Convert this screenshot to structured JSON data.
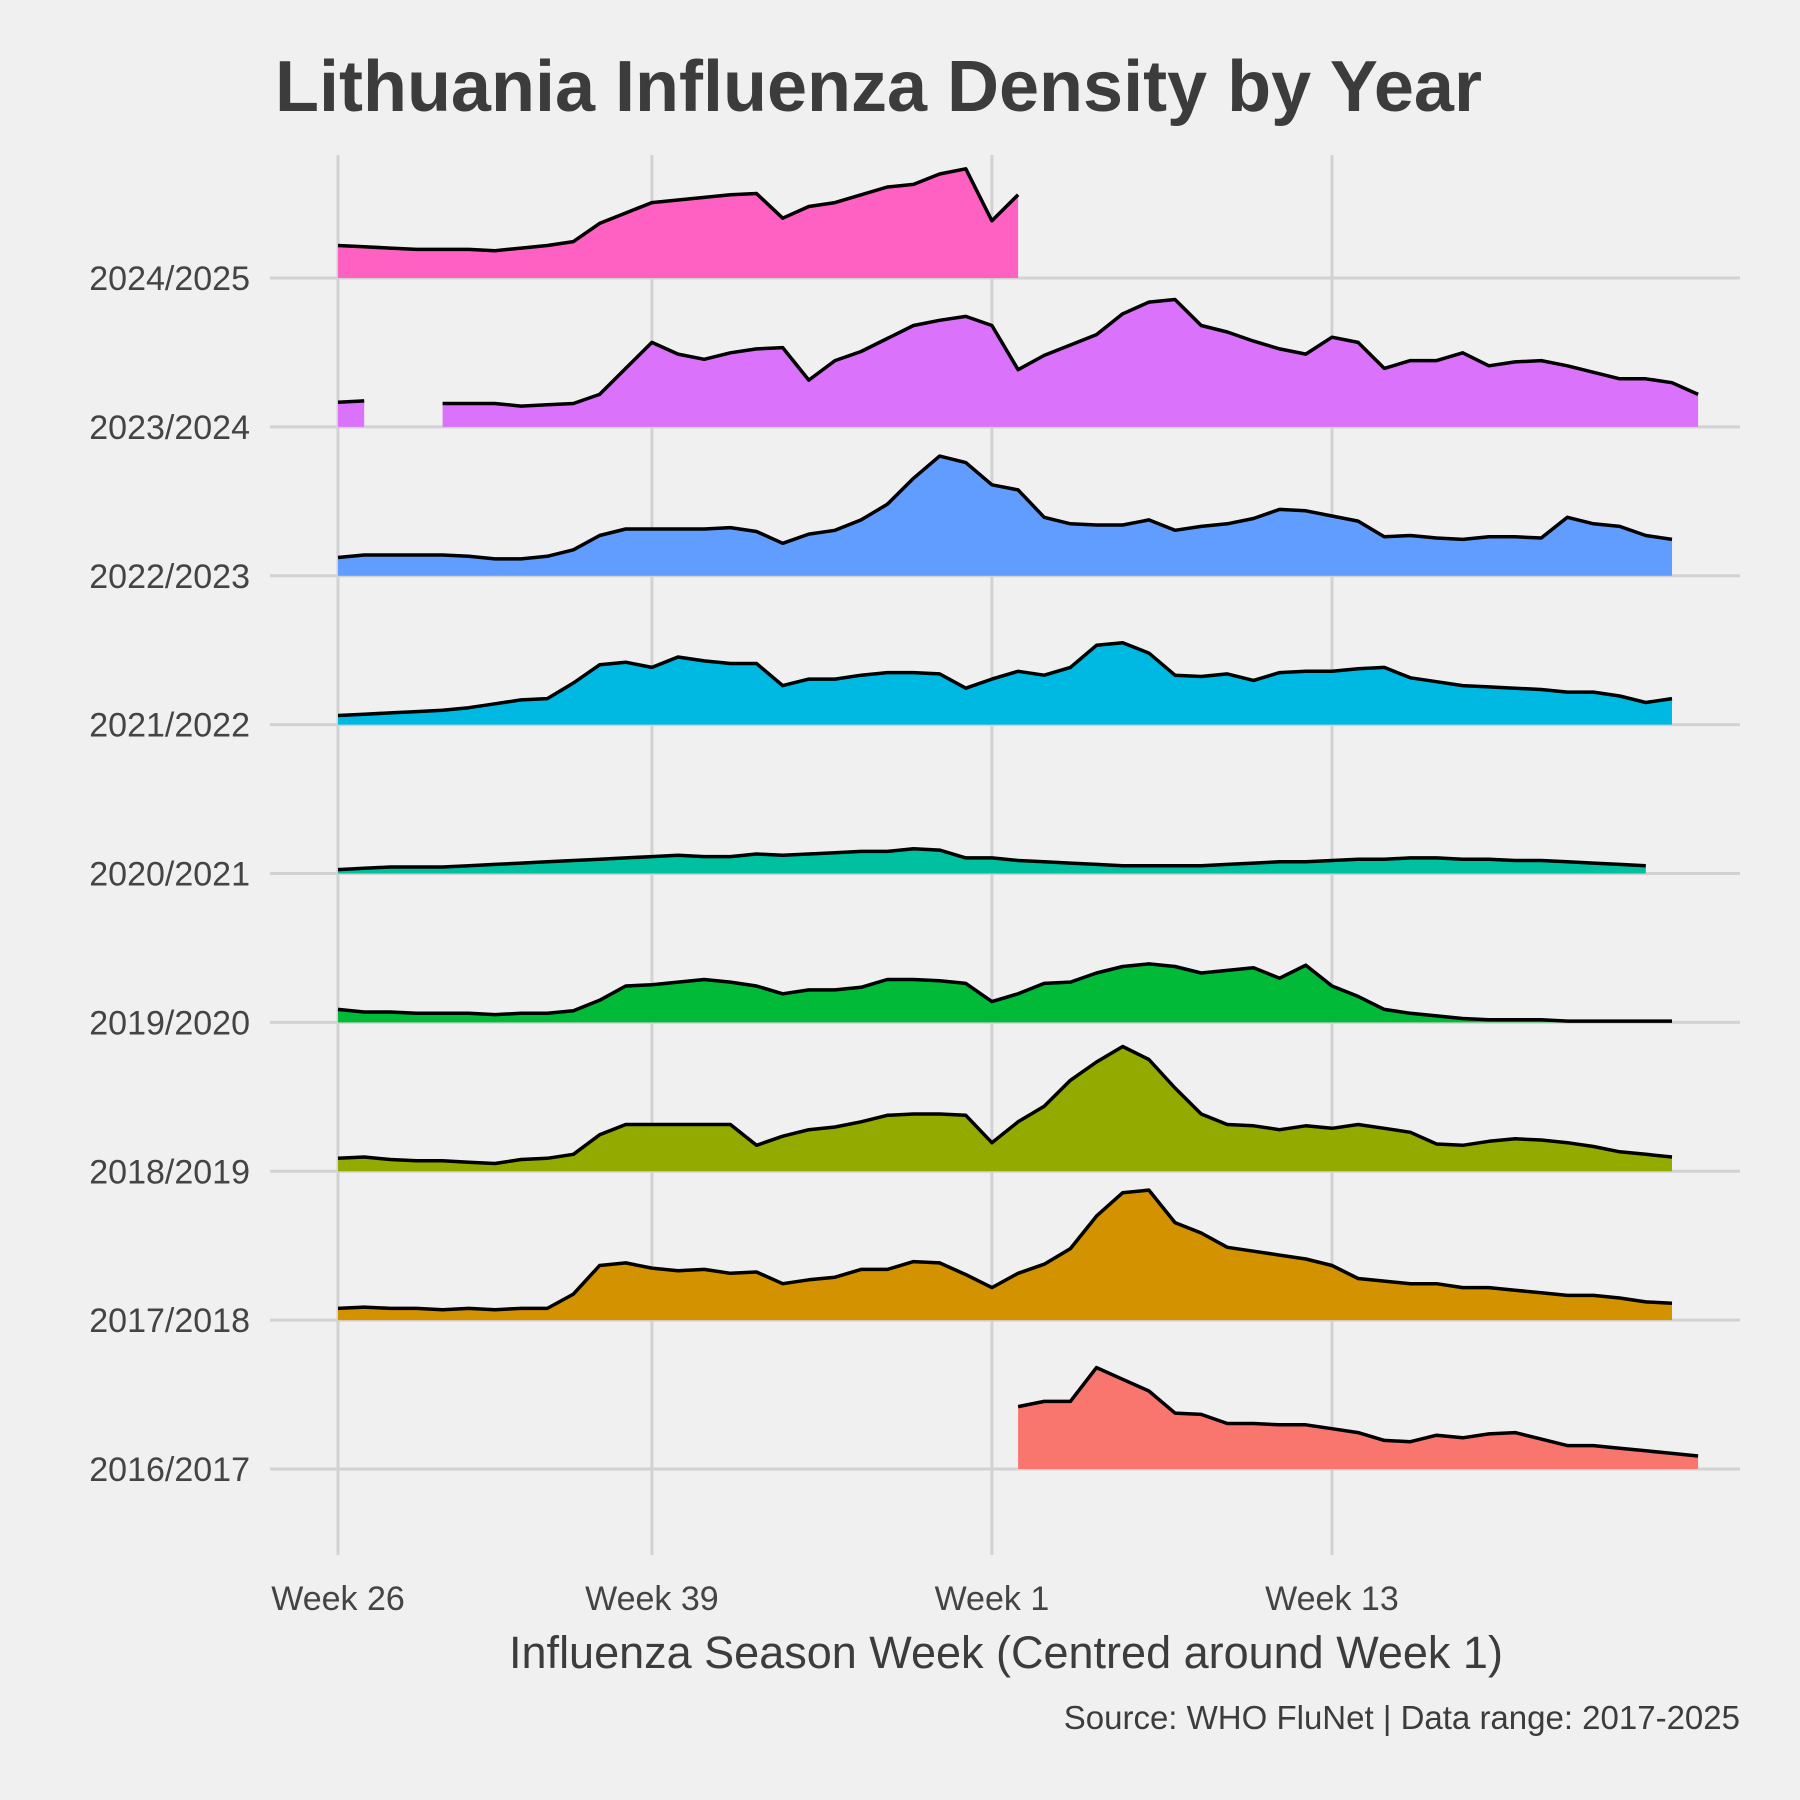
{
  "chart_data": {
    "type": "area",
    "subtype": "ridgeline",
    "title": "Lithuania Influenza Density by Year",
    "xlabel": "Influenza Season Week (Centred around Week 1)",
    "ylabel": "",
    "caption": "Source: WHO FluNet | Data range: 2017-2025",
    "x_ticks": [
      {
        "label": "Week 26",
        "index": 0
      },
      {
        "label": "Week 39",
        "index": 12
      },
      {
        "label": "Week 1",
        "index": 25
      },
      {
        "label": "Week 13",
        "index": 38
      }
    ],
    "xlim": [
      -2.6,
      53.6
    ],
    "ylim": [
      0,
      1
    ],
    "grid": true,
    "legend": "none",
    "series": [
      {
        "name": "2016/2017",
        "color": "#f8766d",
        "values": [
          null,
          null,
          null,
          null,
          null,
          null,
          null,
          null,
          null,
          null,
          null,
          null,
          null,
          null,
          null,
          null,
          null,
          null,
          null,
          null,
          null,
          null,
          null,
          null,
          null,
          null,
          0.48,
          0.52,
          0.52,
          0.78,
          0.69,
          0.6,
          0.43,
          0.42,
          0.35,
          0.35,
          0.34,
          0.34,
          0.31,
          0.28,
          0.22,
          0.21,
          0.26,
          0.24,
          0.27,
          0.28,
          0.23,
          0.18,
          0.18,
          0.16,
          0.14,
          0.12,
          0.1
        ]
      },
      {
        "name": "2017/2018",
        "color": "#d39200",
        "values": [
          0.09,
          0.1,
          0.09,
          0.09,
          0.08,
          0.09,
          0.08,
          0.09,
          0.09,
          0.2,
          0.42,
          0.44,
          0.4,
          0.38,
          0.39,
          0.36,
          0.37,
          0.28,
          0.31,
          0.33,
          0.39,
          0.39,
          0.45,
          0.44,
          0.35,
          0.25,
          0.36,
          0.43,
          0.55,
          0.8,
          0.98,
          1.0,
          0.75,
          0.67,
          0.56,
          0.53,
          0.5,
          0.47,
          0.42,
          0.32,
          0.3,
          0.28,
          0.28,
          0.25,
          0.25,
          0.23,
          0.21,
          0.19,
          0.19,
          0.17,
          0.14,
          0.13
        ]
      },
      {
        "name": "2018/2019",
        "color": "#93aa00",
        "values": [
          0.1,
          0.11,
          0.09,
          0.08,
          0.08,
          0.07,
          0.06,
          0.09,
          0.1,
          0.13,
          0.28,
          0.36,
          0.36,
          0.36,
          0.36,
          0.36,
          0.2,
          0.27,
          0.32,
          0.34,
          0.38,
          0.43,
          0.44,
          0.44,
          0.43,
          0.22,
          0.38,
          0.5,
          0.7,
          0.84,
          0.96,
          0.86,
          0.64,
          0.44,
          0.36,
          0.35,
          0.32,
          0.35,
          0.33,
          0.36,
          0.33,
          0.3,
          0.21,
          0.2,
          0.23,
          0.25,
          0.24,
          0.22,
          0.19,
          0.15,
          0.13,
          0.11
        ]
      },
      {
        "name": "2019/2020",
        "color": "#00ba38",
        "values": [
          0.1,
          0.08,
          0.08,
          0.07,
          0.07,
          0.07,
          0.06,
          0.07,
          0.07,
          0.09,
          0.17,
          0.28,
          0.29,
          0.31,
          0.33,
          0.31,
          0.28,
          0.22,
          0.25,
          0.25,
          0.27,
          0.33,
          0.33,
          0.32,
          0.3,
          0.16,
          0.22,
          0.3,
          0.31,
          0.38,
          0.43,
          0.45,
          0.43,
          0.38,
          0.4,
          0.42,
          0.34,
          0.44,
          0.28,
          0.2,
          0.1,
          0.07,
          0.05,
          0.03,
          0.02,
          0.02,
          0.02,
          0.01,
          0.01,
          0.01,
          0.01,
          0.01
        ]
      },
      {
        "name": "2020/2021",
        "color": "#00c19f",
        "values": [
          0.03,
          0.04,
          0.05,
          0.05,
          0.05,
          0.06,
          0.07,
          0.08,
          0.09,
          0.1,
          0.11,
          0.12,
          0.13,
          0.14,
          0.13,
          0.13,
          0.15,
          0.14,
          0.15,
          0.16,
          0.17,
          0.17,
          0.19,
          0.18,
          0.12,
          0.12,
          0.1,
          0.09,
          0.08,
          0.07,
          0.06,
          0.06,
          0.06,
          0.06,
          0.07,
          0.08,
          0.09,
          0.09,
          0.1,
          0.11,
          0.11,
          0.12,
          0.12,
          0.11,
          0.11,
          0.1,
          0.1,
          0.09,
          0.08,
          0.07,
          0.06
        ]
      },
      {
        "name": "2021/2022",
        "color": "#00b9e3",
        "values": [
          0.07,
          0.08,
          0.09,
          0.1,
          0.11,
          0.13,
          0.16,
          0.19,
          0.2,
          0.32,
          0.46,
          0.48,
          0.44,
          0.52,
          0.49,
          0.47,
          0.47,
          0.3,
          0.35,
          0.35,
          0.38,
          0.4,
          0.4,
          0.39,
          0.28,
          0.35,
          0.41,
          0.38,
          0.44,
          0.61,
          0.63,
          0.55,
          0.38,
          0.37,
          0.39,
          0.34,
          0.4,
          0.41,
          0.41,
          0.43,
          0.44,
          0.36,
          0.33,
          0.3,
          0.29,
          0.28,
          0.27,
          0.25,
          0.25,
          0.22,
          0.17,
          0.2
        ]
      },
      {
        "name": "2022/2023",
        "color": "#619cff",
        "values": [
          0.14,
          0.16,
          0.16,
          0.16,
          0.16,
          0.15,
          0.13,
          0.13,
          0.15,
          0.2,
          0.31,
          0.36,
          0.36,
          0.36,
          0.36,
          0.37,
          0.34,
          0.25,
          0.32,
          0.35,
          0.43,
          0.55,
          0.75,
          0.92,
          0.87,
          0.7,
          0.66,
          0.45,
          0.4,
          0.39,
          0.39,
          0.43,
          0.35,
          0.38,
          0.4,
          0.44,
          0.51,
          0.5,
          0.46,
          0.42,
          0.3,
          0.31,
          0.29,
          0.28,
          0.3,
          0.3,
          0.29,
          0.45,
          0.4,
          0.38,
          0.31,
          0.28
        ]
      },
      {
        "name": "2023/2024",
        "color": "#db72fb",
        "values": [
          0.19,
          0.2,
          null,
          null,
          0.18,
          0.18,
          0.18,
          0.16,
          0.17,
          0.18,
          0.25,
          0.45,
          0.65,
          0.56,
          0.52,
          0.57,
          0.6,
          0.61,
          0.36,
          0.51,
          0.58,
          0.68,
          0.78,
          0.82,
          0.85,
          0.78,
          0.44,
          0.55,
          0.63,
          0.71,
          0.87,
          0.96,
          0.98,
          0.78,
          0.73,
          0.66,
          0.6,
          0.56,
          0.69,
          0.65,
          0.45,
          0.51,
          0.51,
          0.57,
          0.47,
          0.5,
          0.51,
          0.47,
          0.42,
          0.37,
          0.37,
          0.34,
          0.25
        ]
      },
      {
        "name": "2024/2025",
        "color": "#ff61c3",
        "values": [
          0.25,
          0.24,
          0.23,
          0.22,
          0.22,
          0.22,
          0.21,
          0.23,
          0.25,
          0.28,
          0.42,
          0.5,
          0.58,
          0.6,
          0.62,
          0.64,
          0.65,
          0.46,
          0.55,
          0.58,
          0.64,
          0.7,
          0.72,
          0.8,
          0.84,
          0.44,
          0.64
        ]
      }
    ]
  }
}
